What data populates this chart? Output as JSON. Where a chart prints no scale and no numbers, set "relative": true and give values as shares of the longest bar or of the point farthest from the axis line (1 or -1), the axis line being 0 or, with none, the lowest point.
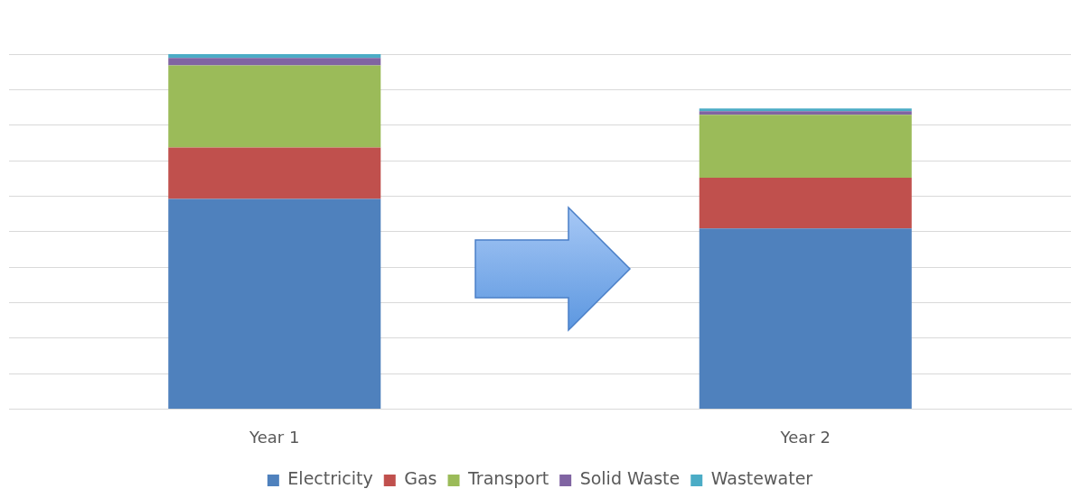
{
  "chart_data": {
    "type": "bar",
    "stacked": true,
    "relative": true,
    "grid": "y",
    "legend": "bottom",
    "categories": [
      "Year 1",
      "Year 2"
    ],
    "series": [
      {
        "name": "Electricity",
        "color": "#4f81bd",
        "values": [
          0.592,
          0.509
        ]
      },
      {
        "name": "Gas",
        "color": "#c0504d",
        "values": [
          0.145,
          0.143
        ]
      },
      {
        "name": "Transport",
        "color": "#9bbb59",
        "values": [
          0.231,
          0.177
        ]
      },
      {
        "name": "Solid Waste",
        "color": "#8064a2",
        "values": [
          0.021,
          0.01
        ]
      },
      {
        "name": "Wastewater",
        "color": "#4bacc6",
        "values": [
          0.011,
          0.008
        ]
      }
    ]
  }
}
